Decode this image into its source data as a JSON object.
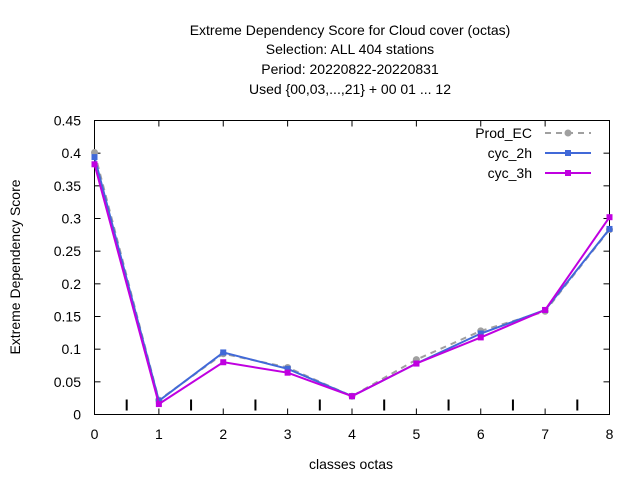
{
  "chart_data": {
    "type": "line",
    "title_lines": [
      "Extreme Dependency Score  for Cloud cover (octas)",
      "Selection: ALL    404 stations",
      "Period: 20220822-20220831",
      "Used {00,03,...,21} + 00 01 ... 12"
    ],
    "xlabel": "classes octas",
    "ylabel": "Extreme Dependency Score",
    "xlim": [
      0,
      8
    ],
    "ylim": [
      0,
      0.45
    ],
    "x_ticks": [
      "0",
      "1",
      "2",
      "3",
      "4",
      "5",
      "6",
      "7",
      "8"
    ],
    "y_ticks": [
      "0",
      "0.05",
      "0.1",
      "0.15",
      "0.2",
      "0.25",
      "0.3",
      "0.35",
      "0.4",
      "0.45"
    ],
    "grid": false,
    "legend_position": "top-right",
    "x": [
      0,
      1,
      2,
      3,
      4,
      5,
      6,
      7,
      8
    ],
    "series": [
      {
        "name": "Prod_EC",
        "color": "#a0a0a0",
        "dashed": true,
        "marker": "circle",
        "values": [
          0.401,
          0.022,
          0.093,
          0.072,
          0.028,
          0.084,
          0.128,
          0.158,
          0.283
        ]
      },
      {
        "name": "cyc_2h",
        "color": "#4169d8",
        "dashed": false,
        "marker": "square",
        "values": [
          0.394,
          0.021,
          0.095,
          0.07,
          0.028,
          0.078,
          0.124,
          0.16,
          0.284
        ]
      },
      {
        "name": "cyc_3h",
        "color": "#c000e0",
        "dashed": false,
        "marker": "square",
        "values": [
          0.383,
          0.016,
          0.08,
          0.064,
          0.028,
          0.078,
          0.118,
          0.16,
          0.302
        ]
      }
    ]
  }
}
